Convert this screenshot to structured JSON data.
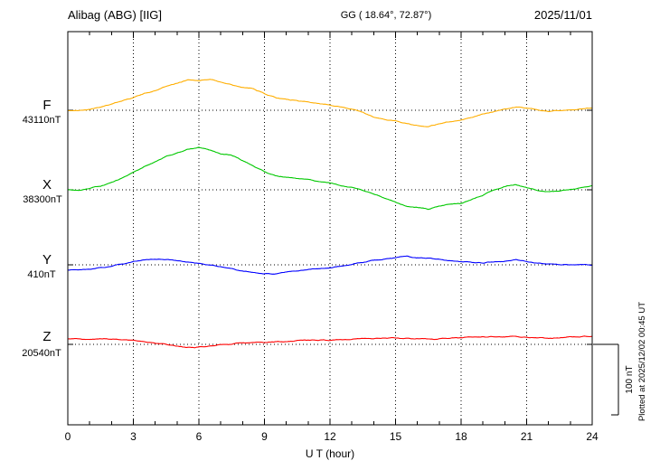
{
  "header": {
    "station": "Alibag (ABG)  [IIG]",
    "coords": "GG ( 18.64°,  72.87°)",
    "date": "2025/11/01"
  },
  "axis": {
    "xlabel": "U T (hour)",
    "x_ticks": [
      0,
      3,
      6,
      9,
      12,
      15,
      18,
      21,
      24
    ],
    "x_minor_step": 1,
    "x_range": [
      0,
      24
    ]
  },
  "scalebar": {
    "label": "100 nT",
    "nT": 100
  },
  "footer": {
    "plotted_at": "Plotted at 2025/12/02 00:45 UT"
  },
  "chart_data": {
    "type": "line",
    "title": "Alibag (ABG) [IIG] magnetogram for 2025/11/01",
    "xlabel": "U T (hour)",
    "x_range": [
      0,
      24
    ],
    "grid": "dotted vertical lines every 3 h; dotted horizontal baseline per component",
    "legend_position": "left margin, one colored letter per trace",
    "scale_nT_per_div": 100,
    "point_format": "[hour UT, offset in nT from component baseline]",
    "series": [
      {
        "name": "F",
        "baseline_label": "43110nT",
        "baseline_nT": 43110,
        "color": "#FFAE00",
        "points": [
          [
            0,
            0
          ],
          [
            0.5,
            -1
          ],
          [
            1,
            1
          ],
          [
            1.5,
            4
          ],
          [
            2,
            8
          ],
          [
            2.5,
            13
          ],
          [
            3,
            18
          ],
          [
            3.5,
            24
          ],
          [
            4,
            28
          ],
          [
            4.5,
            34
          ],
          [
            5,
            38
          ],
          [
            5.5,
            43
          ],
          [
            6,
            41
          ],
          [
            6.5,
            44
          ],
          [
            7,
            40
          ],
          [
            7.5,
            36
          ],
          [
            8,
            33
          ],
          [
            8.5,
            31
          ],
          [
            9,
            24
          ],
          [
            9.5,
            18
          ],
          [
            10,
            15
          ],
          [
            10.5,
            13
          ],
          [
            11,
            12
          ],
          [
            11.5,
            10
          ],
          [
            12,
            8
          ],
          [
            12.5,
            5
          ],
          [
            13,
            2
          ],
          [
            13.5,
            -2
          ],
          [
            14,
            -8
          ],
          [
            14.5,
            -12
          ],
          [
            15,
            -14
          ],
          [
            15.5,
            -18
          ],
          [
            16,
            -21
          ],
          [
            16.5,
            -23
          ],
          [
            17,
            -19
          ],
          [
            17.5,
            -15
          ],
          [
            18,
            -13
          ],
          [
            18.5,
            -9
          ],
          [
            19,
            -5
          ],
          [
            19.5,
            -2
          ],
          [
            20,
            1
          ],
          [
            20.5,
            4
          ],
          [
            21,
            2
          ],
          [
            21.5,
            0
          ],
          [
            22,
            -2
          ],
          [
            22.5,
            -1
          ],
          [
            23,
            0
          ],
          [
            23.5,
            2
          ],
          [
            24,
            4
          ]
        ]
      },
      {
        "name": "X",
        "baseline_label": "38300nT",
        "baseline_nT": 38300,
        "color": "#00C800",
        "points": [
          [
            0,
            0
          ],
          [
            0.5,
            -1
          ],
          [
            1,
            2
          ],
          [
            1.5,
            5
          ],
          [
            2,
            10
          ],
          [
            2.5,
            17
          ],
          [
            3,
            25
          ],
          [
            3.5,
            33
          ],
          [
            4,
            40
          ],
          [
            4.5,
            47
          ],
          [
            5,
            52
          ],
          [
            5.5,
            57
          ],
          [
            6,
            60
          ],
          [
            6.5,
            56
          ],
          [
            7,
            50
          ],
          [
            7.5,
            48
          ],
          [
            8,
            41
          ],
          [
            8.5,
            33
          ],
          [
            9,
            26
          ],
          [
            9.5,
            20
          ],
          [
            10,
            18
          ],
          [
            10.5,
            16
          ],
          [
            11,
            15
          ],
          [
            11.5,
            12
          ],
          [
            12,
            10
          ],
          [
            12.5,
            6
          ],
          [
            13,
            3
          ],
          [
            13.5,
            -1
          ],
          [
            14,
            -6
          ],
          [
            14.5,
            -12
          ],
          [
            15,
            -18
          ],
          [
            15.5,
            -24
          ],
          [
            16,
            -26
          ],
          [
            16.5,
            -28
          ],
          [
            17,
            -23
          ],
          [
            17.5,
            -21
          ],
          [
            18,
            -20
          ],
          [
            18.5,
            -14
          ],
          [
            19,
            -8
          ],
          [
            19.5,
            -1
          ],
          [
            20,
            5
          ],
          [
            20.5,
            8
          ],
          [
            21,
            3
          ],
          [
            21.5,
            -1
          ],
          [
            22,
            -3
          ],
          [
            22.5,
            -2
          ],
          [
            23,
            0
          ],
          [
            23.5,
            3
          ],
          [
            24,
            6
          ]
        ]
      },
      {
        "name": "Y",
        "baseline_label": "410nT",
        "baseline_nT": 410,
        "color": "#0000FF",
        "points": [
          [
            0,
            -8
          ],
          [
            0.5,
            -7
          ],
          [
            1,
            -6
          ],
          [
            1.5,
            -4
          ],
          [
            2,
            -2
          ],
          [
            2.5,
            1
          ],
          [
            3,
            4
          ],
          [
            3.5,
            7
          ],
          [
            4,
            8
          ],
          [
            4.5,
            8
          ],
          [
            5,
            6
          ],
          [
            5.5,
            4
          ],
          [
            6,
            2
          ],
          [
            6.5,
            0
          ],
          [
            7,
            -2
          ],
          [
            7.5,
            -5
          ],
          [
            8,
            -8
          ],
          [
            8.5,
            -10
          ],
          [
            9,
            -12
          ],
          [
            9.5,
            -12
          ],
          [
            10,
            -10
          ],
          [
            10.5,
            -8
          ],
          [
            11,
            -6
          ],
          [
            11.5,
            -5
          ],
          [
            12,
            -4
          ],
          [
            12.5,
            -2
          ],
          [
            13,
            0
          ],
          [
            13.5,
            3
          ],
          [
            14,
            6
          ],
          [
            14.5,
            8
          ],
          [
            15,
            10
          ],
          [
            15.5,
            12
          ],
          [
            16,
            10
          ],
          [
            16.5,
            9
          ],
          [
            17,
            8
          ],
          [
            17.5,
            6
          ],
          [
            18,
            5
          ],
          [
            18.5,
            4
          ],
          [
            19,
            3
          ],
          [
            19.5,
            4
          ],
          [
            20,
            5
          ],
          [
            20.5,
            8
          ],
          [
            21,
            5
          ],
          [
            21.5,
            3
          ],
          [
            22,
            2
          ],
          [
            22.5,
            1
          ],
          [
            23,
            0
          ],
          [
            23.5,
            0
          ],
          [
            24,
            0
          ]
        ]
      },
      {
        "name": "Z",
        "baseline_label": "20540nT",
        "baseline_nT": 20540,
        "color": "#FF0000",
        "points": [
          [
            0,
            8
          ],
          [
            0.5,
            7
          ],
          [
            1,
            7
          ],
          [
            1.5,
            8
          ],
          [
            2,
            8
          ],
          [
            2.5,
            7
          ],
          [
            3,
            6
          ],
          [
            3.5,
            4
          ],
          [
            4,
            2
          ],
          [
            4.5,
            0
          ],
          [
            5,
            -2
          ],
          [
            5.5,
            -4
          ],
          [
            6,
            -3
          ],
          [
            6.5,
            -2
          ],
          [
            7,
            0
          ],
          [
            7.5,
            1
          ],
          [
            8,
            2
          ],
          [
            8.5,
            3
          ],
          [
            9,
            3
          ],
          [
            9.5,
            4
          ],
          [
            10,
            4
          ],
          [
            10.5,
            5
          ],
          [
            11,
            6
          ],
          [
            11.5,
            6
          ],
          [
            12,
            6
          ],
          [
            12.5,
            7
          ],
          [
            13,
            7
          ],
          [
            13.5,
            8
          ],
          [
            14,
            8
          ],
          [
            14.5,
            9
          ],
          [
            15,
            9
          ],
          [
            15.5,
            8
          ],
          [
            16,
            8
          ],
          [
            16.5,
            8
          ],
          [
            17,
            8
          ],
          [
            17.5,
            9
          ],
          [
            18,
            9
          ],
          [
            18.5,
            10
          ],
          [
            19,
            10
          ],
          [
            19.5,
            11
          ],
          [
            20,
            11
          ],
          [
            20.5,
            12
          ],
          [
            21,
            10
          ],
          [
            21.5,
            10
          ],
          [
            22,
            9
          ],
          [
            22.5,
            9
          ],
          [
            23,
            10
          ],
          [
            23.5,
            10
          ],
          [
            24,
            10
          ]
        ]
      }
    ]
  }
}
